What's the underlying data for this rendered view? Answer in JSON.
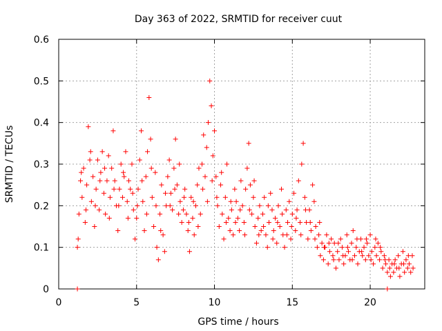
{
  "chart_data": {
    "type": "scatter",
    "title": "Day 363 of 2022, SRMTID for receiver cuut",
    "xlabel": "GPS time / hours",
    "ylabel": "SRMTID / TECUs",
    "xlim": [
      0,
      23.5
    ],
    "ylim": [
      0,
      0.6
    ],
    "xticks": [
      0,
      5,
      10,
      15,
      20
    ],
    "yticks": [
      0,
      0.1,
      0.2,
      0.3,
      0.4,
      0.5,
      0.6
    ],
    "grid": true,
    "marker": "+",
    "color": "#ff0000",
    "series": [
      {
        "name": "SRMTID",
        "points": [
          [
            1.2,
            0.1
          ],
          [
            1.3,
            0.18
          ],
          [
            1.4,
            0.26
          ],
          [
            1.5,
            0.22
          ],
          [
            1.6,
            0.29
          ],
          [
            1.7,
            0.16
          ],
          [
            1.8,
            0.25
          ],
          [
            1.9,
            0.39
          ],
          [
            2.0,
            0.31
          ],
          [
            2.1,
            0.21
          ],
          [
            2.2,
            0.27
          ],
          [
            2.3,
            0.15
          ],
          [
            2.4,
            0.24
          ],
          [
            2.5,
            0.31
          ],
          [
            2.6,
            0.19
          ],
          [
            2.7,
            0.28
          ],
          [
            2.8,
            0.33
          ],
          [
            2.9,
            0.23
          ],
          [
            3.0,
            0.18
          ],
          [
            3.1,
            0.26
          ],
          [
            3.2,
            0.32
          ],
          [
            3.3,
            0.22
          ],
          [
            3.4,
            0.29
          ],
          [
            3.5,
            0.38
          ],
          [
            3.6,
            0.26
          ],
          [
            3.7,
            0.2
          ],
          [
            3.8,
            0.14
          ],
          [
            3.9,
            0.24
          ],
          [
            4.0,
            0.3
          ],
          [
            4.1,
            0.22
          ],
          [
            4.2,
            0.27
          ],
          [
            4.3,
            0.33
          ],
          [
            4.4,
            0.21
          ],
          [
            4.5,
            0.26
          ],
          [
            4.6,
            0.24
          ],
          [
            4.7,
            0.3
          ],
          [
            4.8,
            0.19
          ],
          [
            4.9,
            0.12
          ],
          [
            5.0,
            0.17
          ],
          [
            5.1,
            0.24
          ],
          [
            5.2,
            0.31
          ],
          [
            5.3,
            0.38
          ],
          [
            5.4,
            0.21
          ],
          [
            5.5,
            0.14
          ],
          [
            5.6,
            0.27
          ],
          [
            5.7,
            0.33
          ],
          [
            5.8,
            0.46
          ],
          [
            5.9,
            0.36
          ],
          [
            6.0,
            0.22
          ],
          [
            6.1,
            0.15
          ],
          [
            6.2,
            0.28
          ],
          [
            6.3,
            0.1
          ],
          [
            6.4,
            0.07
          ],
          [
            6.5,
            0.18
          ],
          [
            6.6,
            0.25
          ],
          [
            6.7,
            0.13
          ],
          [
            6.8,
            0.09
          ],
          [
            6.9,
            0.2
          ],
          [
            7.0,
            0.27
          ],
          [
            7.1,
            0.31
          ],
          [
            7.2,
            0.23
          ],
          [
            7.3,
            0.19
          ],
          [
            7.4,
            0.29
          ],
          [
            7.5,
            0.36
          ],
          [
            7.6,
            0.25
          ],
          [
            7.7,
            0.18
          ],
          [
            7.8,
            0.21
          ],
          [
            7.9,
            0.16
          ],
          [
            8.0,
            0.19
          ],
          [
            8.1,
            0.24
          ],
          [
            8.2,
            0.18
          ],
          [
            8.3,
            0.14
          ],
          [
            8.4,
            0.09
          ],
          [
            8.5,
            0.22
          ],
          [
            8.6,
            0.17
          ],
          [
            8.7,
            0.13
          ],
          [
            8.8,
            0.2
          ],
          [
            8.9,
            0.25
          ],
          [
            9.0,
            0.29
          ],
          [
            9.1,
            0.18
          ],
          [
            9.2,
            0.3
          ],
          [
            9.3,
            0.37
          ],
          [
            9.4,
            0.27
          ],
          [
            9.5,
            0.34
          ],
          [
            9.6,
            0.4
          ],
          [
            9.7,
            0.5
          ],
          [
            9.8,
            0.44
          ],
          [
            9.9,
            0.32
          ],
          [
            10.0,
            0.38
          ],
          [
            10.1,
            0.27
          ],
          [
            10.2,
            0.2
          ],
          [
            10.3,
            0.15
          ],
          [
            10.4,
            0.25
          ],
          [
            10.5,
            0.18
          ],
          [
            10.6,
            0.12
          ],
          [
            10.7,
            0.22
          ],
          [
            10.8,
            0.3
          ],
          [
            10.9,
            0.17
          ],
          [
            11.0,
            0.14
          ],
          [
            11.1,
            0.19
          ],
          [
            11.2,
            0.13
          ],
          [
            11.3,
            0.24
          ],
          [
            11.4,
            0.21
          ],
          [
            11.5,
            0.17
          ],
          [
            11.6,
            0.14
          ],
          [
            11.7,
            0.26
          ],
          [
            11.8,
            0.2
          ],
          [
            11.9,
            0.16
          ],
          [
            12.0,
            0.24
          ],
          [
            12.1,
            0.29
          ],
          [
            12.2,
            0.35
          ],
          [
            12.3,
            0.25
          ],
          [
            12.4,
            0.18
          ],
          [
            12.5,
            0.22
          ],
          [
            12.6,
            0.15
          ],
          [
            12.7,
            0.11
          ],
          [
            12.8,
            0.17
          ],
          [
            12.9,
            0.2
          ],
          [
            13.0,
            0.14
          ],
          [
            13.1,
            0.18
          ],
          [
            13.2,
            0.22
          ],
          [
            13.3,
            0.13
          ],
          [
            13.4,
            0.1
          ],
          [
            13.5,
            0.16
          ],
          [
            13.6,
            0.23
          ],
          [
            13.7,
            0.19
          ],
          [
            13.8,
            0.14
          ],
          [
            13.9,
            0.17
          ],
          [
            14.0,
            0.11
          ],
          [
            14.1,
            0.2
          ],
          [
            14.2,
            0.15
          ],
          [
            14.3,
            0.24
          ],
          [
            14.4,
            0.13
          ],
          [
            14.5,
            0.1
          ],
          [
            14.6,
            0.19
          ],
          [
            14.7,
            0.16
          ],
          [
            14.8,
            0.21
          ],
          [
            14.9,
            0.12
          ],
          [
            15.0,
            0.18
          ],
          [
            15.1,
            0.23
          ],
          [
            15.2,
            0.14
          ],
          [
            15.3,
            0.19
          ],
          [
            15.4,
            0.26
          ],
          [
            15.5,
            0.16
          ],
          [
            15.6,
            0.3
          ],
          [
            15.7,
            0.35
          ],
          [
            15.8,
            0.22
          ],
          [
            15.9,
            0.16
          ],
          [
            16.0,
            0.12
          ],
          [
            16.1,
            0.19
          ],
          [
            16.2,
            0.14
          ],
          [
            16.3,
            0.25
          ],
          [
            16.4,
            0.21
          ],
          [
            16.5,
            0.15
          ],
          [
            16.6,
            0.1
          ],
          [
            16.7,
            0.13
          ],
          [
            16.8,
            0.08
          ],
          [
            16.9,
            0.11
          ],
          [
            17.0,
            0.07
          ],
          [
            17.1,
            0.1
          ],
          [
            17.2,
            0.13
          ],
          [
            17.3,
            0.06
          ],
          [
            17.4,
            0.09
          ],
          [
            17.5,
            0.12
          ],
          [
            17.6,
            0.08
          ],
          [
            17.7,
            0.11
          ],
          [
            17.8,
            0.05
          ],
          [
            17.9,
            0.09
          ],
          [
            18.0,
            0.07
          ],
          [
            18.1,
            0.12
          ],
          [
            18.2,
            0.1
          ],
          [
            18.3,
            0.06
          ],
          [
            18.4,
            0.08
          ],
          [
            18.5,
            0.13
          ],
          [
            18.6,
            0.09
          ],
          [
            18.7,
            0.07
          ],
          [
            18.8,
            0.11
          ],
          [
            18.9,
            0.14
          ],
          [
            19.0,
            0.08
          ],
          [
            19.1,
            0.1
          ],
          [
            19.2,
            0.06
          ],
          [
            19.3,
            0.09
          ],
          [
            19.4,
            0.12
          ],
          [
            19.5,
            0.08
          ],
          [
            19.6,
            0.1
          ],
          [
            19.7,
            0.07
          ],
          [
            19.8,
            0.11
          ],
          [
            19.9,
            0.08
          ],
          [
            20.0,
            0.13
          ],
          [
            20.1,
            0.09
          ],
          [
            20.2,
            0.06
          ],
          [
            20.3,
            0.1
          ],
          [
            20.4,
            0.08
          ],
          [
            20.5,
            0.11
          ],
          [
            20.6,
            0.07
          ],
          [
            20.7,
            0.09
          ],
          [
            20.8,
            0.05
          ],
          [
            20.9,
            0.08
          ],
          [
            21.0,
            0.06
          ],
          [
            21.1,
            0.04
          ],
          [
            21.2,
            0.07
          ],
          [
            21.3,
            0.03
          ],
          [
            21.4,
            0.06
          ],
          [
            21.5,
            0.04
          ],
          [
            21.6,
            0.07
          ],
          [
            21.7,
            0.05
          ],
          [
            21.8,
            0.08
          ],
          [
            21.9,
            0.03
          ],
          [
            22.0,
            0.06
          ],
          [
            22.1,
            0.09
          ],
          [
            22.2,
            0.04
          ],
          [
            22.3,
            0.07
          ],
          [
            22.4,
            0.05
          ],
          [
            22.5,
            0.06
          ],
          [
            22.6,
            0.04
          ],
          [
            22.7,
            0.08
          ],
          [
            1.25,
            0.12
          ],
          [
            1.45,
            0.28
          ],
          [
            1.75,
            0.19
          ],
          [
            2.05,
            0.33
          ],
          [
            2.35,
            0.2
          ],
          [
            2.65,
            0.26
          ],
          [
            2.95,
            0.29
          ],
          [
            3.25,
            0.17
          ],
          [
            3.55,
            0.24
          ],
          [
            3.85,
            0.2
          ],
          [
            4.15,
            0.28
          ],
          [
            4.45,
            0.17
          ],
          [
            4.75,
            0.23
          ],
          [
            5.05,
            0.2
          ],
          [
            5.35,
            0.26
          ],
          [
            5.65,
            0.18
          ],
          [
            5.95,
            0.29
          ],
          [
            6.25,
            0.2
          ],
          [
            6.55,
            0.14
          ],
          [
            6.85,
            0.23
          ],
          [
            7.15,
            0.2
          ],
          [
            7.45,
            0.24
          ],
          [
            7.75,
            0.3
          ],
          [
            8.05,
            0.22
          ],
          [
            8.35,
            0.16
          ],
          [
            8.65,
            0.21
          ],
          [
            8.95,
            0.15
          ],
          [
            9.25,
            0.24
          ],
          [
            9.55,
            0.21
          ],
          [
            9.85,
            0.26
          ],
          [
            10.15,
            0.22
          ],
          [
            10.45,
            0.28
          ],
          [
            10.75,
            0.16
          ],
          [
            11.05,
            0.21
          ],
          [
            11.35,
            0.16
          ],
          [
            11.65,
            0.19
          ],
          [
            11.95,
            0.13
          ],
          [
            12.25,
            0.19
          ],
          [
            12.55,
            0.26
          ],
          [
            12.85,
            0.13
          ],
          [
            13.15,
            0.15
          ],
          [
            13.45,
            0.2
          ],
          [
            13.75,
            0.12
          ],
          [
            14.05,
            0.16
          ],
          [
            14.35,
            0.18
          ],
          [
            14.65,
            0.13
          ],
          [
            14.95,
            0.15
          ],
          [
            15.25,
            0.17
          ],
          [
            15.55,
            0.13
          ],
          [
            15.85,
            0.19
          ],
          [
            16.15,
            0.16
          ],
          [
            16.45,
            0.12
          ],
          [
            16.75,
            0.16
          ],
          [
            17.05,
            0.1
          ],
          [
            17.35,
            0.11
          ],
          [
            17.65,
            0.07
          ],
          [
            17.95,
            0.11
          ],
          [
            18.25,
            0.08
          ],
          [
            18.55,
            0.1
          ],
          [
            18.85,
            0.07
          ],
          [
            19.15,
            0.12
          ],
          [
            19.45,
            0.09
          ],
          [
            19.75,
            0.12
          ],
          [
            20.05,
            0.07
          ],
          [
            20.35,
            0.12
          ],
          [
            20.65,
            0.1
          ],
          [
            20.95,
            0.07
          ],
          [
            21.25,
            0.05
          ],
          [
            21.55,
            0.06
          ],
          [
            21.85,
            0.05
          ],
          [
            22.15,
            0.06
          ],
          [
            22.45,
            0.08
          ],
          [
            22.75,
            0.05
          ],
          [
            1.2,
            0.0
          ],
          [
            21.1,
            0.0
          ]
        ]
      }
    ]
  }
}
